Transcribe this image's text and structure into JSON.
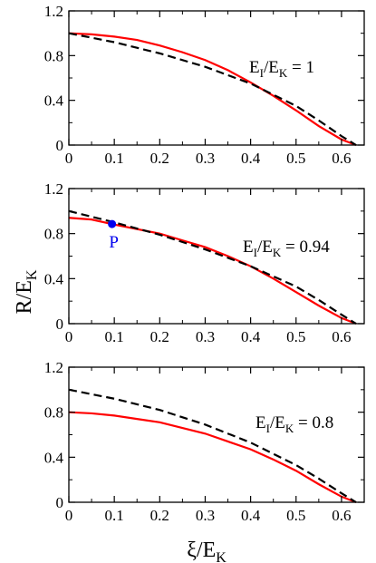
{
  "chart_data": [
    {
      "type": "line",
      "annotation": "E_I/E_K = 1",
      "annotation_main": "E",
      "annotation_sub1": "I",
      "annotation_mid": "/E",
      "annotation_sub2": "K",
      "annotation_tail": " = 1",
      "xlim": [
        0,
        0.65
      ],
      "ylim": [
        0,
        1.2
      ],
      "xticks": [
        "0",
        "0.1",
        "0.2",
        "0.3",
        "0.4",
        "0.5",
        "0.6"
      ],
      "yticks": [
        "0",
        "0.4",
        "0.8",
        "1.2"
      ],
      "grid": false,
      "series": [
        {
          "style": "solid",
          "color": "#ff0000",
          "x": [
            0,
            0.05,
            0.1,
            0.15,
            0.2,
            0.25,
            0.3,
            0.35,
            0.4,
            0.45,
            0.5,
            0.55,
            0.6,
            0.632
          ],
          "y": [
            1.0,
            0.99,
            0.97,
            0.94,
            0.89,
            0.83,
            0.76,
            0.67,
            0.56,
            0.44,
            0.31,
            0.17,
            0.05,
            0.0
          ]
        },
        {
          "style": "dashed",
          "color": "#000000",
          "x": [
            0,
            0.1,
            0.2,
            0.3,
            0.4,
            0.5,
            0.55,
            0.6,
            0.632
          ],
          "y": [
            1.0,
            0.92,
            0.82,
            0.7,
            0.55,
            0.35,
            0.22,
            0.08,
            0.0
          ]
        }
      ]
    },
    {
      "type": "line",
      "annotation": "E_I/E_K = 0.94",
      "annotation_main": "E",
      "annotation_sub1": "I",
      "annotation_mid": "/E",
      "annotation_sub2": "K",
      "annotation_tail": " = 0.94",
      "point_label": "P",
      "point": {
        "x": 0.095,
        "y": 0.885,
        "color": "#0000ee"
      },
      "xlim": [
        0,
        0.65
      ],
      "ylim": [
        0,
        1.2
      ],
      "xticks": [
        "0",
        "0.1",
        "0.2",
        "0.3",
        "0.4",
        "0.5",
        "0.6"
      ],
      "yticks": [
        "0",
        "0.4",
        "0.8",
        "1.2"
      ],
      "grid": false,
      "series": [
        {
          "style": "solid",
          "color": "#ff0000",
          "x": [
            0,
            0.05,
            0.1,
            0.15,
            0.2,
            0.25,
            0.3,
            0.35,
            0.4,
            0.45,
            0.5,
            0.55,
            0.6,
            0.632
          ],
          "y": [
            0.94,
            0.925,
            0.88,
            0.84,
            0.8,
            0.74,
            0.68,
            0.6,
            0.51,
            0.4,
            0.28,
            0.16,
            0.05,
            0.0
          ]
        },
        {
          "style": "dashed",
          "color": "#000000",
          "x": [
            0,
            0.1,
            0.2,
            0.3,
            0.4,
            0.5,
            0.55,
            0.6,
            0.632
          ],
          "y": [
            1.0,
            0.9,
            0.79,
            0.66,
            0.51,
            0.33,
            0.21,
            0.08,
            0.0
          ]
        }
      ]
    },
    {
      "type": "line",
      "annotation": "E_I/E_K = 0.8",
      "annotation_main": "E",
      "annotation_sub1": "I",
      "annotation_mid": "/E",
      "annotation_sub2": "K",
      "annotation_tail": " = 0.8",
      "xlim": [
        0,
        0.65
      ],
      "ylim": [
        0,
        1.2
      ],
      "xticks": [
        "0",
        "0.1",
        "0.2",
        "0.3",
        "0.4",
        "0.5",
        "0.6"
      ],
      "yticks": [
        "0",
        "0.4",
        "0.8",
        "1.2"
      ],
      "grid": false,
      "series": [
        {
          "style": "solid",
          "color": "#ff0000",
          "x": [
            0,
            0.05,
            0.1,
            0.15,
            0.2,
            0.25,
            0.3,
            0.35,
            0.4,
            0.45,
            0.5,
            0.55,
            0.6,
            0.632
          ],
          "y": [
            0.8,
            0.79,
            0.77,
            0.74,
            0.71,
            0.66,
            0.61,
            0.54,
            0.47,
            0.38,
            0.28,
            0.16,
            0.05,
            0.0
          ]
        },
        {
          "style": "dashed",
          "color": "#000000",
          "x": [
            0,
            0.1,
            0.2,
            0.3,
            0.4,
            0.5,
            0.55,
            0.6,
            0.632
          ],
          "y": [
            1.0,
            0.92,
            0.82,
            0.69,
            0.53,
            0.33,
            0.21,
            0.08,
            0.0
          ]
        }
      ]
    }
  ],
  "ylabel_main": "R/E",
  "ylabel_sub": "K",
  "xlabel_main": "ξ/E",
  "xlabel_sub": "K"
}
